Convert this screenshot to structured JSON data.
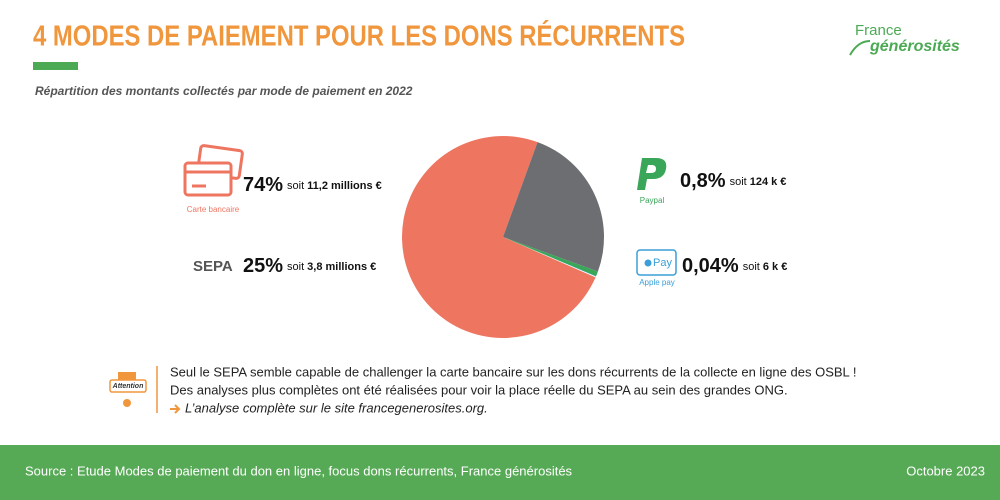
{
  "header": {
    "title": "4 MODES DE PAIEMENT POUR LES DONS RÉCURRENTS",
    "logo_top": "France",
    "logo_bottom": "générosités"
  },
  "chart_data": {
    "type": "pie",
    "title": "Répartition des montants collectés par mode de paiement en 2022",
    "categories": [
      "Carte bancaire",
      "SEPA",
      "Paypal",
      "Apple pay"
    ],
    "values": [
      74,
      25,
      0.8,
      0.04
    ],
    "value_labels": [
      "74%",
      "25%",
      "0,8%",
      "0,04%"
    ],
    "connector": "soit",
    "amount_labels": [
      "11,2 millions €",
      "3,8 millions €",
      "124 k €",
      "6 k €"
    ],
    "colors": [
      "#ee7661",
      "#6d6e72",
      "#3aa65a",
      "#3a9fd8"
    ]
  },
  "icons": {
    "attention": "Attention",
    "applepay": "Pay"
  },
  "note": {
    "lines": [
      "Seul le SEPA semble capable de challenger la carte bancaire sur les dons récurrents de la collecte en ligne des OSBL !",
      "Des analyses plus complètes ont été réalisées pour voir la place réelle du SEPA au sein des grandes ONG."
    ],
    "link": "L’analyse complète sur le site francegenerosites.org."
  },
  "footer": {
    "source": "Source : Etude Modes de paiement du don en ligne, focus dons récurrents, France générosités",
    "date": "Octobre 2023"
  }
}
